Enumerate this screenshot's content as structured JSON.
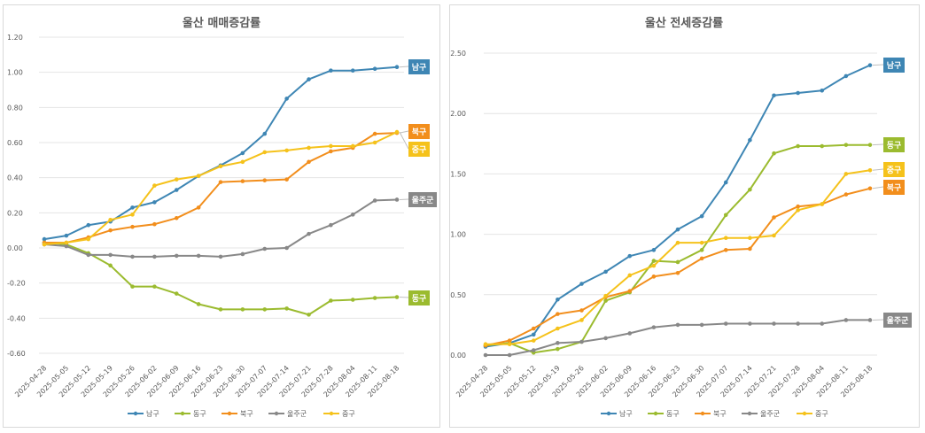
{
  "chart_data": [
    {
      "type": "line",
      "title": "울산 매매증감률",
      "categories": [
        "2025-04-28",
        "2025-05-05",
        "2025-05-12",
        "2025-05-19",
        "2025-05-26",
        "2025-06-02",
        "2025-06-09",
        "2025-06-16",
        "2025-06-23",
        "2025-06-30",
        "2025-07-07",
        "2025-07-14",
        "2025-07-21",
        "2025-07-28",
        "2025-08-04",
        "2025-08-11",
        "2025-08-18"
      ],
      "ylim": [
        -0.6,
        1.2
      ],
      "yticks": [
        "-0.60",
        "-0.40",
        "-0.20",
        "0.00",
        "0.20",
        "0.40",
        "0.60",
        "0.80",
        "1.00",
        "1.20"
      ],
      "grid": true,
      "legend_position": "bottom",
      "series": [
        {
          "name": "남구",
          "color": "#3e86b4",
          "values": [
            0.05,
            0.07,
            0.13,
            0.15,
            0.23,
            0.26,
            0.33,
            0.41,
            0.47,
            0.54,
            0.65,
            0.85,
            0.96,
            1.01,
            1.01,
            1.02,
            1.03
          ]
        },
        {
          "name": "동구",
          "color": "#9bbb2f",
          "values": [
            0.03,
            0.02,
            -0.03,
            -0.1,
            -0.22,
            -0.22,
            -0.26,
            -0.32,
            -0.35,
            -0.35,
            -0.35,
            -0.345,
            -0.38,
            -0.3,
            -0.295,
            -0.285,
            -0.28
          ]
        },
        {
          "name": "북구",
          "color": "#f28e1c",
          "values": [
            0.03,
            0.03,
            0.06,
            0.1,
            0.12,
            0.135,
            0.17,
            0.23,
            0.375,
            0.38,
            0.385,
            0.39,
            0.49,
            0.55,
            0.57,
            0.65,
            0.655
          ]
        },
        {
          "name": "울주군",
          "color": "#888888",
          "values": [
            0.02,
            0.01,
            -0.04,
            -0.04,
            -0.05,
            -0.05,
            -0.045,
            -0.045,
            -0.05,
            -0.035,
            -0.005,
            0.0,
            0.08,
            0.13,
            0.19,
            0.27,
            0.275
          ]
        },
        {
          "name": "중구",
          "color": "#f5c21b",
          "values": [
            0.02,
            0.03,
            0.05,
            0.16,
            0.19,
            0.355,
            0.39,
            0.41,
            0.465,
            0.49,
            0.545,
            0.555,
            0.57,
            0.58,
            0.58,
            0.6,
            0.66
          ]
        }
      ],
      "end_labels": [
        {
          "text": "남구",
          "color": "#3e86b4"
        },
        {
          "text": "북구",
          "color": "#f28e1c"
        },
        {
          "text": "중구",
          "color": "#f5c21b"
        },
        {
          "text": "울주군",
          "color": "#888888"
        },
        {
          "text": "동구",
          "color": "#9bbb2f"
        }
      ]
    },
    {
      "type": "line",
      "title": "울산 전세증감률",
      "categories": [
        "2025-04-28",
        "2025-05-05",
        "2025-05-12",
        "2025-05-19",
        "2025-05-26",
        "2025-06-02",
        "2025-06-09",
        "2025-06-16",
        "2025-06-23",
        "2025-06-30",
        "2025-07-07",
        "2025-07-14",
        "2025-07-21",
        "2025-07-28",
        "2025-08-04",
        "2025-08-11",
        "2025-08-18"
      ],
      "ylim": [
        0,
        2.5
      ],
      "yticks": [
        "0.00",
        "0.50",
        "1.00",
        "1.50",
        "2.00",
        "2.50"
      ],
      "grid": true,
      "legend_position": "bottom",
      "series": [
        {
          "name": "남구",
          "color": "#3e86b4",
          "values": [
            0.07,
            0.1,
            0.17,
            0.46,
            0.59,
            0.69,
            0.82,
            0.87,
            1.04,
            1.15,
            1.43,
            1.78,
            2.15,
            2.17,
            2.19,
            2.31,
            2.4
          ]
        },
        {
          "name": "동구",
          "color": "#9bbb2f",
          "values": [
            0.08,
            0.1,
            0.02,
            0.05,
            0.11,
            0.45,
            0.52,
            0.78,
            0.77,
            0.87,
            1.16,
            1.37,
            1.67,
            1.73,
            1.73,
            1.74,
            1.74
          ]
        },
        {
          "name": "북구",
          "color": "#f28e1c",
          "values": [
            0.08,
            0.12,
            0.22,
            0.34,
            0.37,
            0.48,
            0.53,
            0.65,
            0.68,
            0.8,
            0.87,
            0.88,
            1.14,
            1.23,
            1.25,
            1.33,
            1.38
          ]
        },
        {
          "name": "울주군",
          "color": "#888888",
          "values": [
            0.0,
            0.0,
            0.04,
            0.1,
            0.11,
            0.14,
            0.18,
            0.23,
            0.25,
            0.25,
            0.26,
            0.26,
            0.26,
            0.26,
            0.26,
            0.29,
            0.29
          ]
        },
        {
          "name": "중구",
          "color": "#f5c21b",
          "values": [
            0.09,
            0.09,
            0.12,
            0.22,
            0.29,
            0.49,
            0.66,
            0.74,
            0.93,
            0.93,
            0.97,
            0.97,
            0.99,
            1.2,
            1.25,
            1.5,
            1.53
          ]
        }
      ],
      "end_labels": [
        {
          "text": "남구",
          "color": "#3e86b4"
        },
        {
          "text": "동구",
          "color": "#9bbb2f"
        },
        {
          "text": "중구",
          "color": "#f5c21b"
        },
        {
          "text": "북구",
          "color": "#f28e1c"
        },
        {
          "text": "울주군",
          "color": "#888888"
        }
      ]
    }
  ]
}
